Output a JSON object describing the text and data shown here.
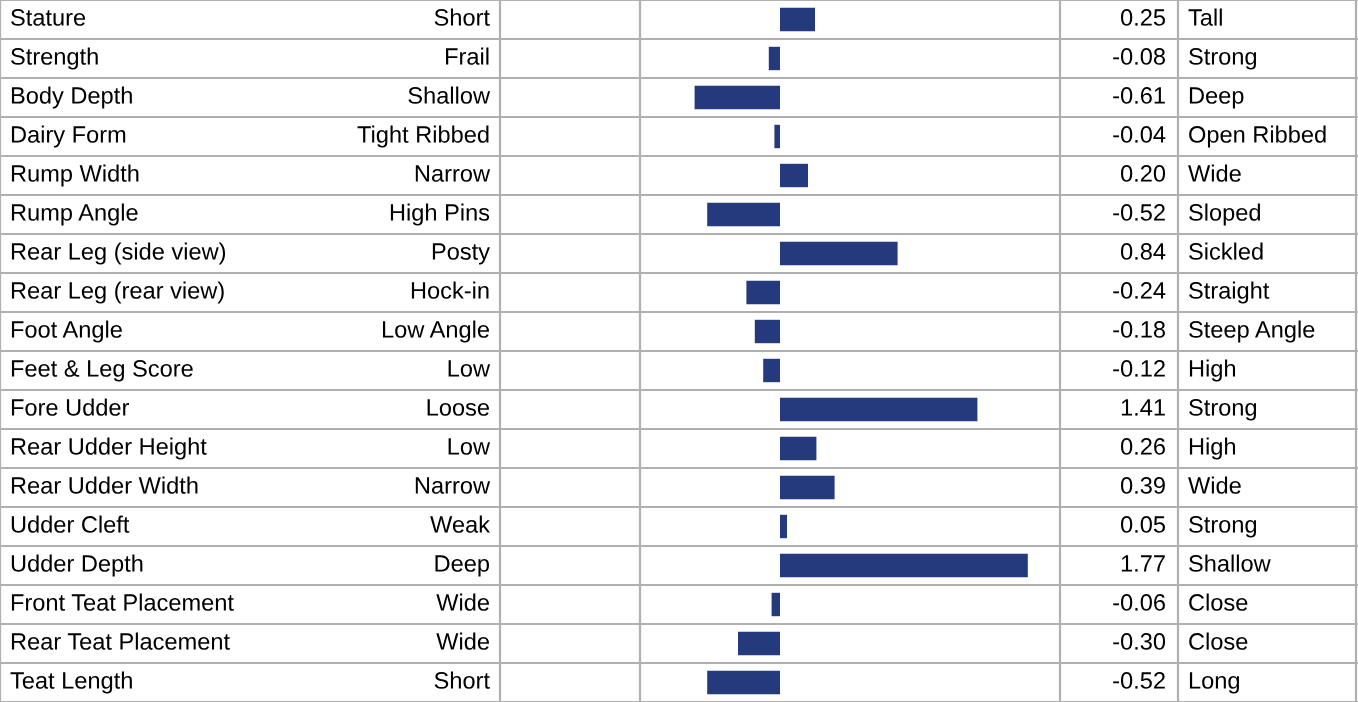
{
  "chart_data": {
    "type": "bar",
    "orientation": "horizontal",
    "categories": [
      "Stature",
      "Strength",
      "Body Depth",
      "Dairy Form",
      "Rump Width",
      "Rump Angle",
      "Rear Leg (side view)",
      "Rear Leg (rear view)",
      "Foot Angle",
      "Feet & Leg Score",
      "Fore Udder",
      "Rear Udder Height",
      "Rear Udder Width",
      "Udder Cleft",
      "Udder Depth",
      "Front Teat Placement",
      "Rear Teat Placement",
      "Teat Length"
    ],
    "values": [
      0.25,
      -0.08,
      -0.61,
      -0.04,
      0.2,
      -0.52,
      0.84,
      -0.24,
      -0.18,
      -0.12,
      1.41,
      0.26,
      0.39,
      0.05,
      1.77,
      -0.06,
      -0.3,
      -0.52
    ],
    "value_labels": [
      "0.25",
      "-0.08",
      "-0.61",
      "-0.04",
      "0.20",
      "-0.52",
      "0.84",
      "-0.24",
      "-0.18",
      "-0.12",
      "1.41",
      "0.26",
      "0.39",
      "0.05",
      "1.77",
      "-0.06",
      "-0.30",
      "-0.52"
    ],
    "color": "#253a7c",
    "xlim": [
      -2,
      2
    ],
    "annotations": [
      "Short",
      "Tall",
      "Frail",
      "Strong",
      "Shallow",
      "Deep",
      "Tight Ribbed",
      "Open Ribbed",
      "Narrow",
      "Wide",
      "High Pins",
      "Sloped",
      "Posty",
      "Sickled",
      "Hock-in",
      "Straight",
      "Low Angle",
      "Steep Angle",
      "Low",
      "High",
      "Loose",
      "Strong",
      "Low",
      "High",
      "Narrow",
      "Wide",
      "Weak",
      "Strong",
      "Deep",
      "Shallow",
      "Wide",
      "Close",
      "Wide",
      "Close",
      "Short",
      "Long"
    ]
  }
}
